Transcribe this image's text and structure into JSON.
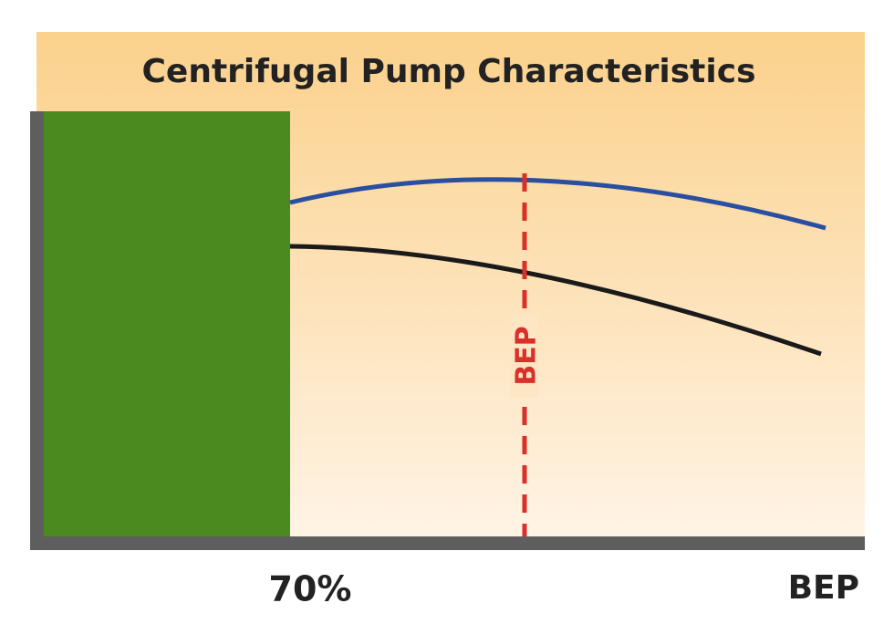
{
  "title": "Centrifugal Pump Characteristics",
  "marker_label": "BEP",
  "axis_labels": {
    "threshold": "70%",
    "end": "BEP"
  }
}
